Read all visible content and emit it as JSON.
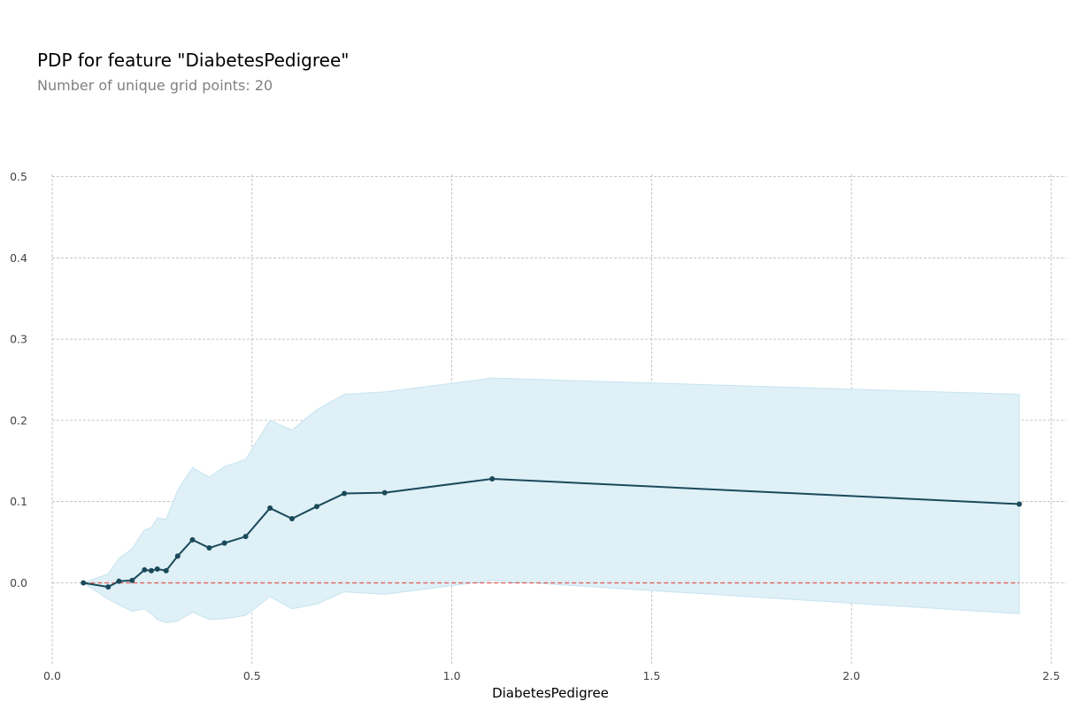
{
  "chart_data": {
    "type": "line",
    "title": "PDP for feature \"DiabetesPedigree\"",
    "subtitle": "Number of unique grid points: 20",
    "xlabel": "DiabetesPedigree",
    "ylabel": "",
    "xlim": [
      0.0,
      2.5
    ],
    "ylim": [
      -0.1,
      0.5
    ],
    "x_ticks": [
      0.0,
      0.5,
      1.0,
      1.5,
      2.0,
      2.5
    ],
    "x_tick_labels": [
      "0.0",
      "0.5",
      "1.0",
      "1.5",
      "2.0",
      "2.5"
    ],
    "y_ticks": [
      0.0,
      0.1,
      0.2,
      0.3,
      0.4,
      0.5
    ],
    "y_tick_labels": [
      "0.0",
      "0.1",
      "0.2",
      "0.3",
      "0.4",
      "0.5"
    ],
    "grid": true,
    "series": [
      {
        "x": [
          0.078,
          0.14,
          0.167,
          0.2,
          0.231,
          0.248,
          0.263,
          0.285,
          0.314,
          0.351,
          0.393,
          0.431,
          0.484,
          0.545,
          0.6,
          0.662,
          0.731,
          0.832,
          1.101,
          2.42
        ],
        "values": [
          0.0,
          -0.005,
          0.002,
          0.003,
          0.016,
          0.015,
          0.017,
          0.015,
          0.033,
          0.053,
          0.043,
          0.049,
          0.057,
          0.092,
          0.079,
          0.094,
          0.11,
          0.111,
          0.128,
          0.097
        ],
        "lower": [
          0.0,
          -0.02,
          -0.027,
          -0.035,
          -0.032,
          -0.038,
          -0.045,
          -0.049,
          -0.047,
          -0.036,
          -0.045,
          -0.044,
          -0.04,
          -0.017,
          -0.032,
          -0.026,
          -0.011,
          -0.014,
          0.003,
          -0.038
        ],
        "upper": [
          0.0,
          0.011,
          0.03,
          0.042,
          0.065,
          0.068,
          0.08,
          0.078,
          0.114,
          0.142,
          0.13,
          0.143,
          0.152,
          0.2,
          0.188,
          0.213,
          0.232,
          0.235,
          0.252,
          0.232
        ]
      }
    ],
    "baseline": 0.0,
    "colors": {
      "line": "#1a4a5a",
      "band": "#dff0f7",
      "band_edge": "#c6e4f0",
      "baseline": "#e05555",
      "grid": "#b8b8b8"
    }
  }
}
